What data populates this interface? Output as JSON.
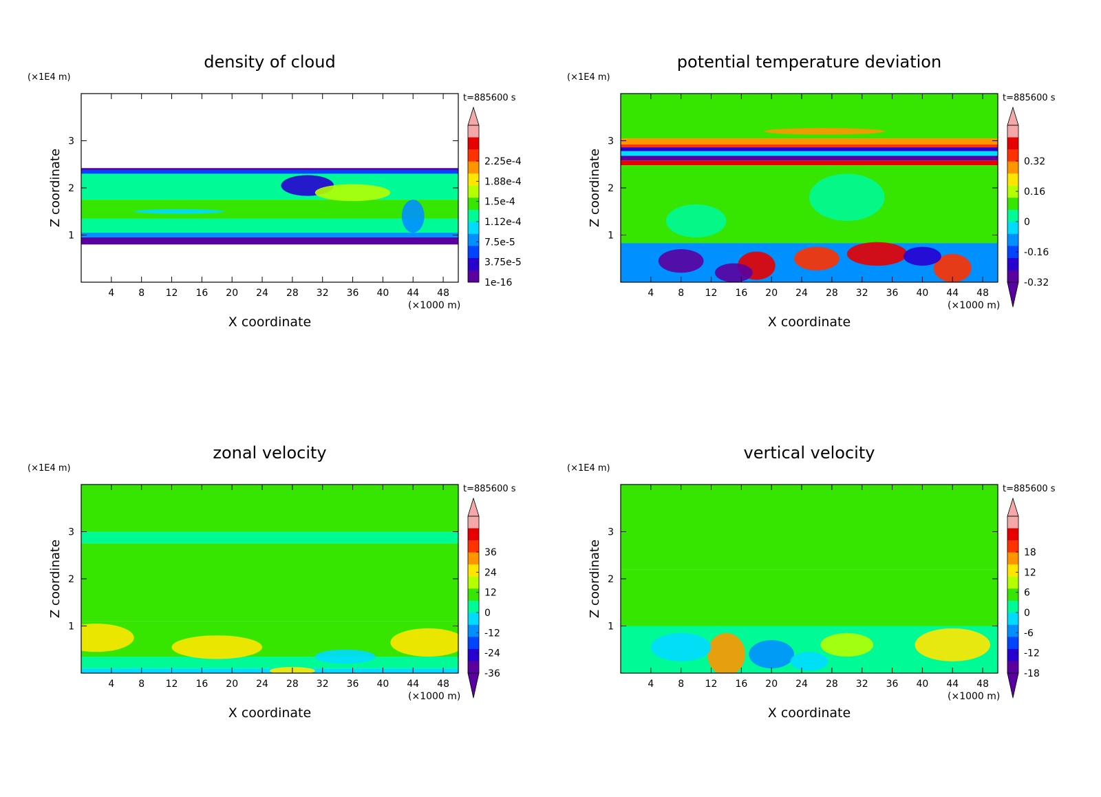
{
  "figure": {
    "time_label": "t=885600 s"
  },
  "chart_data": [
    {
      "type": "heatmap",
      "title": "density of cloud",
      "xlabel": "X coordinate",
      "ylabel": "Z coordinate",
      "x_unit": "(×1000 m)",
      "y_unit": "(×1E4 m)",
      "x_ticks": [
        "4",
        "8",
        "12",
        "16",
        "20",
        "24",
        "28",
        "32",
        "36",
        "40",
        "44",
        "48"
      ],
      "y_ticks": [
        "1",
        "2",
        "3"
      ],
      "xlim": [
        0,
        50
      ],
      "ylim": [
        0,
        4
      ],
      "time_label": "t=885600 s",
      "colorbar": {
        "labels": [
          "2.25e-4",
          "1.88e-4",
          "1.5e-4",
          "1.12e-4",
          "7.5e-5",
          "3.75e-5",
          "1e-16"
        ],
        "extend": "max",
        "levels": [
          1e-16,
          3.75e-05,
          7.5e-05,
          0.000112,
          0.00015,
          0.000188,
          0.000225
        ]
      },
      "bands": [
        {
          "z": [
            2.38,
            2.42
          ],
          "level": 0.05
        },
        {
          "z": [
            2.3,
            2.38
          ],
          "level": 0.22
        },
        {
          "z": [
            1.75,
            2.3
          ],
          "level": 0.48
        },
        {
          "z": [
            1.35,
            1.75
          ],
          "level": 0.58
        },
        {
          "z": [
            1.05,
            1.35
          ],
          "level": 0.47
        },
        {
          "z": [
            0.95,
            1.05
          ],
          "level": 0.28
        },
        {
          "z": [
            0.8,
            0.95
          ],
          "level": 0.08
        }
      ]
    },
    {
      "type": "heatmap",
      "title": "potential temperature deviation",
      "xlabel": "X coordinate",
      "ylabel": "Z coordinate",
      "x_unit": "(×1000 m)",
      "y_unit": "(×1E4 m)",
      "x_ticks": [
        "4",
        "8",
        "12",
        "16",
        "20",
        "24",
        "28",
        "32",
        "36",
        "40",
        "44",
        "48"
      ],
      "y_ticks": [
        "1",
        "2",
        "3"
      ],
      "xlim": [
        0,
        50
      ],
      "ylim": [
        0,
        4
      ],
      "time_label": "t=885600 s",
      "colorbar": {
        "labels": [
          "0.32",
          "0.16",
          "0",
          "-0.16",
          "-0.32"
        ],
        "extend": "both",
        "levels": [
          -0.32,
          -0.16,
          0,
          0.16,
          0.32
        ]
      },
      "bands": [
        {
          "z": [
            3.05,
            4.0
          ],
          "level": 0.56
        },
        {
          "z": [
            2.92,
            3.05
          ],
          "level": 0.75
        },
        {
          "z": [
            2.86,
            2.92
          ],
          "level": 0.9
        },
        {
          "z": [
            2.78,
            2.86
          ],
          "level": 0.1
        },
        {
          "z": [
            2.68,
            2.78
          ],
          "level": 0.35
        },
        {
          "z": [
            2.58,
            2.68
          ],
          "level": 0.05
        },
        {
          "z": [
            2.48,
            2.58
          ],
          "level": 0.95
        },
        {
          "z": [
            0.83,
            2.48
          ],
          "level": 0.55
        },
        {
          "z": [
            0.0,
            0.83
          ],
          "level": 0.3
        }
      ]
    },
    {
      "type": "heatmap",
      "title": "zonal velocity",
      "xlabel": "X coordinate",
      "ylabel": "Z coordinate",
      "x_unit": "(×1000 m)",
      "y_unit": "(×1E4 m)",
      "x_ticks": [
        "4",
        "8",
        "12",
        "16",
        "20",
        "24",
        "28",
        "32",
        "36",
        "40",
        "44",
        "48"
      ],
      "y_ticks": [
        "1",
        "2",
        "3"
      ],
      "xlim": [
        0,
        50
      ],
      "ylim": [
        0,
        4
      ],
      "time_label": "t=885600 s",
      "colorbar": {
        "labels": [
          "36",
          "24",
          "12",
          "0",
          "-12",
          "-24",
          "-36"
        ],
        "extend": "both",
        "levels": [
          -36,
          -24,
          -12,
          0,
          12,
          24,
          36
        ]
      },
      "bands": [
        {
          "z": [
            3.0,
            4.0
          ],
          "level": 0.52
        },
        {
          "z": [
            2.75,
            3.0
          ],
          "level": 0.47
        },
        {
          "z": [
            1.1,
            2.75
          ],
          "level": 0.55
        },
        {
          "z": [
            0.35,
            1.1
          ],
          "level": 0.5
        },
        {
          "z": [
            0.1,
            0.35
          ],
          "level": 0.42
        },
        {
          "z": [
            0.0,
            0.1
          ],
          "level": 0.35
        }
      ]
    },
    {
      "type": "heatmap",
      "title": "vertical velocity",
      "xlabel": "X coordinate",
      "ylabel": "Z coordinate",
      "x_unit": "(×1000 m)",
      "y_unit": "(×1E4 m)",
      "x_ticks": [
        "4",
        "8",
        "12",
        "16",
        "20",
        "24",
        "28",
        "32",
        "36",
        "40",
        "44",
        "48"
      ],
      "y_ticks": [
        "1",
        "2",
        "3"
      ],
      "xlim": [
        0,
        50
      ],
      "ylim": [
        0,
        4
      ],
      "time_label": "t=885600 s",
      "colorbar": {
        "labels": [
          "18",
          "12",
          "6",
          "0",
          "-6",
          "-12",
          "-18"
        ],
        "extend": "both",
        "levels": [
          -18,
          -12,
          -6,
          0,
          6,
          12,
          18
        ]
      },
      "bands": [
        {
          "z": [
            2.2,
            4.0
          ],
          "level": 0.5
        },
        {
          "z": [
            1.0,
            2.2
          ],
          "level": 0.56
        },
        {
          "z": [
            0.0,
            1.0
          ],
          "level": 0.47
        }
      ]
    }
  ],
  "palette": [
    "#5a00a0",
    "#2800d0",
    "#0044ff",
    "#0090ff",
    "#00dcff",
    "#00fa96",
    "#36e600",
    "#b4ff00",
    "#ffe600",
    "#ff9600",
    "#ff3200",
    "#e60000",
    "#f4a8a8"
  ]
}
